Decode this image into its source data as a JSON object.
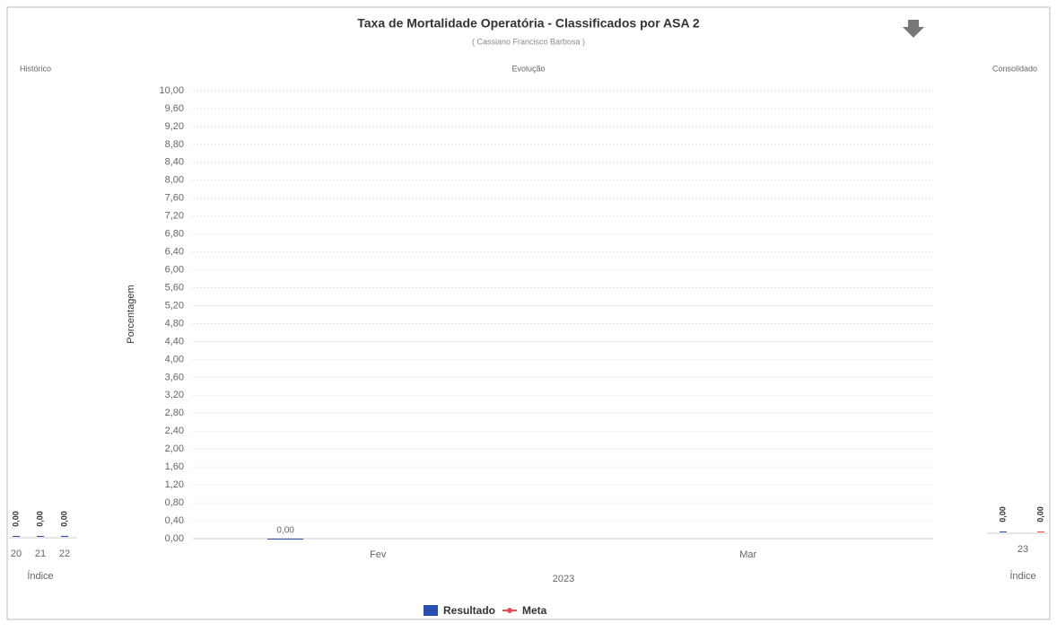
{
  "header": {
    "title": "Taxa de Mortalidade Operatória - Classificados por ASA 2",
    "subtitle": "( Cassiano Francisco Barbosa )"
  },
  "chart_data": [
    {
      "type": "bar",
      "title": "Histórico",
      "categories": [
        "20",
        "21",
        "22"
      ],
      "values": [
        0,
        0,
        0
      ],
      "value_labels": [
        "0,00",
        "0,00",
        "0,00"
      ],
      "xlabel": "Índice",
      "color": "#2a4fb0"
    },
    {
      "type": "bar",
      "title": "Evolução",
      "ylabel": "Porcentagem",
      "xlabel": "2023",
      "categories": [
        "Fev",
        "Mar"
      ],
      "series": [
        {
          "name": "Resultado",
          "color": "#2a4fb0",
          "values": [
            0,
            null
          ],
          "value_labels": [
            "0,00",
            null
          ]
        },
        {
          "name": "Meta",
          "color": "#e05050",
          "values": [
            null,
            null
          ]
        }
      ],
      "ylim": [
        0,
        10
      ],
      "yticks": [
        {
          "value": 0,
          "label": "0,00"
        },
        {
          "value": 0.4,
          "label": "0,40"
        },
        {
          "value": 0.8,
          "label": "0,80"
        },
        {
          "value": 1.2,
          "label": "1,20"
        },
        {
          "value": 1.6,
          "label": "1,60"
        },
        {
          "value": 2,
          "label": "2,00"
        },
        {
          "value": 2.4,
          "label": "2,40"
        },
        {
          "value": 2.8,
          "label": "2,80"
        },
        {
          "value": 3.2,
          "label": "3,20"
        },
        {
          "value": 3.6,
          "label": "3,60"
        },
        {
          "value": 4,
          "label": "4,00"
        },
        {
          "value": 4.4,
          "label": "4,40"
        },
        {
          "value": 4.8,
          "label": "4,80"
        },
        {
          "value": 5.2,
          "label": "5,20"
        },
        {
          "value": 5.6,
          "label": "5,60"
        },
        {
          "value": 6,
          "label": "6,00"
        },
        {
          "value": 6.4,
          "label": "6,40"
        },
        {
          "value": 6.8,
          "label": "6,80"
        },
        {
          "value": 7.2,
          "label": "7,20"
        },
        {
          "value": 7.6,
          "label": "7,60"
        },
        {
          "value": 8,
          "label": "8,00"
        },
        {
          "value": 8.4,
          "label": "8,40"
        },
        {
          "value": 8.8,
          "label": "8,80"
        },
        {
          "value": 9.2,
          "label": "9,20"
        },
        {
          "value": 9.6,
          "label": "9,60"
        },
        {
          "value": 10,
          "label": "10,00"
        }
      ],
      "grid": true
    },
    {
      "type": "bar",
      "title": "Consolidado",
      "categories": [
        "23"
      ],
      "series": [
        {
          "color": "#2a4fb0",
          "values": [
            0
          ],
          "value_labels": [
            "0,00"
          ]
        },
        {
          "color": "#e05050",
          "values": [
            0
          ],
          "value_labels": [
            "0,00"
          ]
        }
      ],
      "xlabel": "Índice"
    }
  ]
}
